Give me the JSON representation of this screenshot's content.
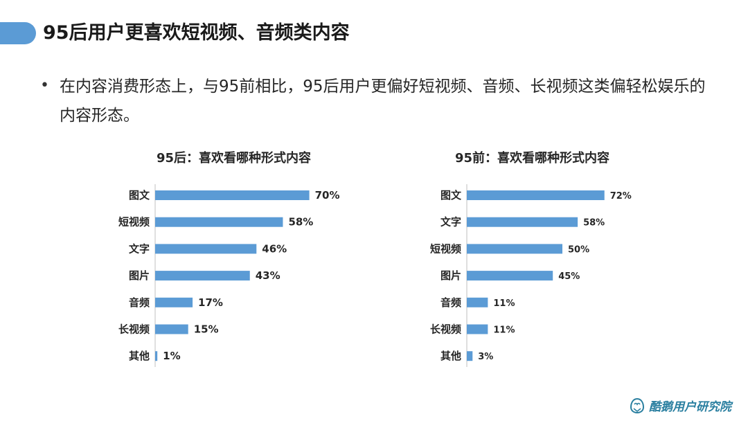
{
  "header": {
    "title": "95后用户更喜欢短视频、音频类内容"
  },
  "bullet": {
    "marker": "•",
    "text": "在内容消费形态上，与95前相比，95后用户更偏好短视频、音频、长视频这类偏轻松娱乐的内容形态。"
  },
  "logo": {
    "text": "酷鹅用户研究院"
  },
  "colors": {
    "bar": "#5b9bd5",
    "title_accent": "#5b9bd5",
    "logo": "#2a7fa0"
  },
  "chart_data": [
    {
      "type": "bar",
      "orientation": "horizontal",
      "title": "95后：喜欢看哪种形式内容",
      "categories": [
        "图文",
        "短视频",
        "文字",
        "图片",
        "音频",
        "长视频",
        "其他"
      ],
      "values": [
        70,
        58,
        46,
        43,
        17,
        15,
        1
      ],
      "value_labels": [
        "70%",
        "58%",
        "46%",
        "43%",
        "17%",
        "15%",
        "1%"
      ],
      "unit": "%",
      "xlim": [
        0,
        100
      ],
      "grid": false,
      "legend": "none"
    },
    {
      "type": "bar",
      "orientation": "horizontal",
      "title": "95前：喜欢看哪种形式内容",
      "categories": [
        "图文",
        "文字",
        "短视频",
        "图片",
        "音频",
        "长视频",
        "其他"
      ],
      "values": [
        72,
        58,
        50,
        45,
        11,
        11,
        3
      ],
      "value_labels": [
        "72%",
        "58%",
        "50%",
        "45%",
        "11%",
        "11%",
        "3%"
      ],
      "unit": "%",
      "xlim": [
        0,
        100
      ],
      "grid": false,
      "legend": "none"
    }
  ]
}
